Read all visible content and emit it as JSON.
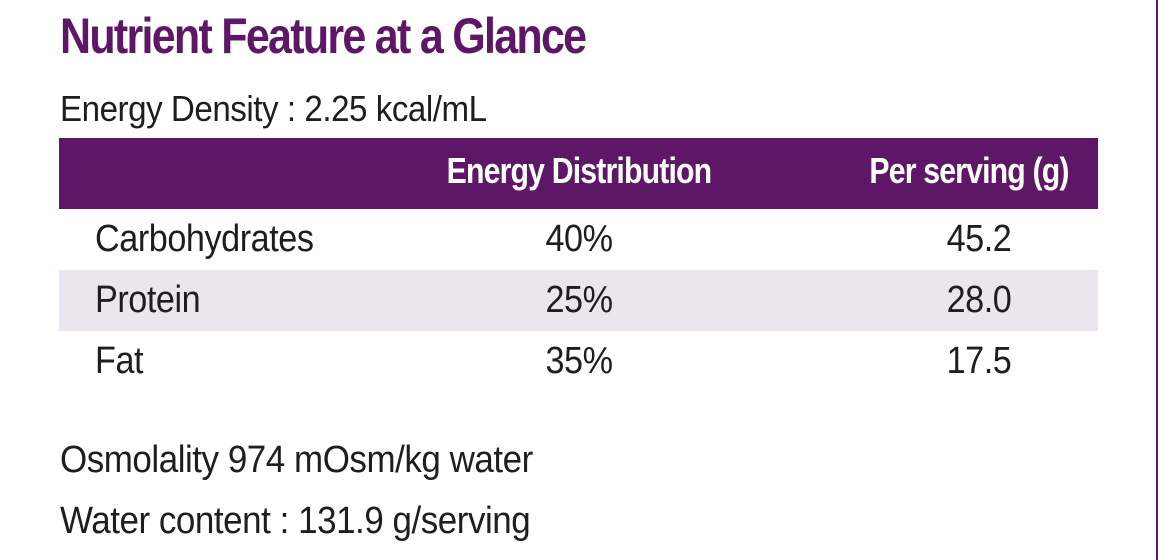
{
  "title": "Nutrient Feature at a Glance",
  "energy_density": "Energy Density  : 2.25 kcal/mL",
  "table": {
    "headers": {
      "nutrient": "",
      "energy_distribution": "Energy Distribution",
      "per_serving": "Per serving (g)"
    },
    "rows": [
      {
        "nutrient": "Carbohydrates",
        "energy_distribution": "40%",
        "per_serving": "45.2"
      },
      {
        "nutrient": "Protein",
        "energy_distribution": "25%",
        "per_serving": "28.0"
      },
      {
        "nutrient": "Fat",
        "energy_distribution": "35%",
        "per_serving": "17.5"
      }
    ]
  },
  "osmolality": "Osmolality 974 mOsm/kg water",
  "water_content": "Water content : 131.9 g/serving",
  "colors": {
    "brand_purple": "#5e1767",
    "alt_row": "#ebe5f0",
    "text": "#1e1e1e"
  }
}
